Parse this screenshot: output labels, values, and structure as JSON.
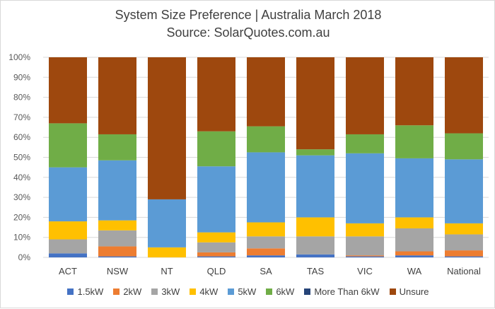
{
  "chart_data": {
    "type": "stacked-bar-100",
    "title": "System Size Preference  | Australia March 2018",
    "subtitle": "Source: SolarQuotes.com.au",
    "categories": [
      "ACT",
      "NSW",
      "NT",
      "QLD",
      "SA",
      "TAS",
      "VIC",
      "WA",
      "National"
    ],
    "ylim": [
      0,
      100
    ],
    "yticks": [
      "0%",
      "10%",
      "20%",
      "30%",
      "40%",
      "50%",
      "60%",
      "70%",
      "80%",
      "90%",
      "100%"
    ],
    "grid": true,
    "legend_position": "bottom",
    "series": [
      {
        "name": "1.5kW",
        "color": "#4472c4",
        "values": [
          2,
          0.5,
          0,
          0.5,
          1,
          1.5,
          0.5,
          1,
          0.5
        ]
      },
      {
        "name": "2kW",
        "color": "#ed7d31",
        "values": [
          0,
          5,
          0,
          2,
          3.5,
          0,
          0.5,
          2,
          3
        ]
      },
      {
        "name": "3kW",
        "color": "#a5a5a5",
        "values": [
          7,
          8,
          0,
          5,
          6,
          9,
          9.5,
          11.5,
          8
        ]
      },
      {
        "name": "4kW",
        "color": "#ffc000",
        "values": [
          9,
          5,
          5,
          5,
          7,
          9.5,
          6.5,
          5.5,
          5.5
        ]
      },
      {
        "name": "5kW",
        "color": "#5b9bd5",
        "values": [
          27,
          30,
          24,
          33,
          35,
          31,
          35,
          29.5,
          32
        ]
      },
      {
        "name": "6kW",
        "color": "#70ad47",
        "values": [
          22,
          13,
          0,
          17.5,
          13,
          3,
          9.5,
          16.5,
          13
        ]
      },
      {
        "name": "More Than 6kW",
        "color": "#264478",
        "values": [
          0,
          0,
          0,
          0,
          0,
          0,
          0,
          0,
          0
        ]
      },
      {
        "name": "Unsure",
        "color": "#9e480e",
        "values": [
          33,
          38.5,
          71,
          37,
          34.5,
          46,
          38.5,
          34,
          38
        ]
      }
    ]
  }
}
